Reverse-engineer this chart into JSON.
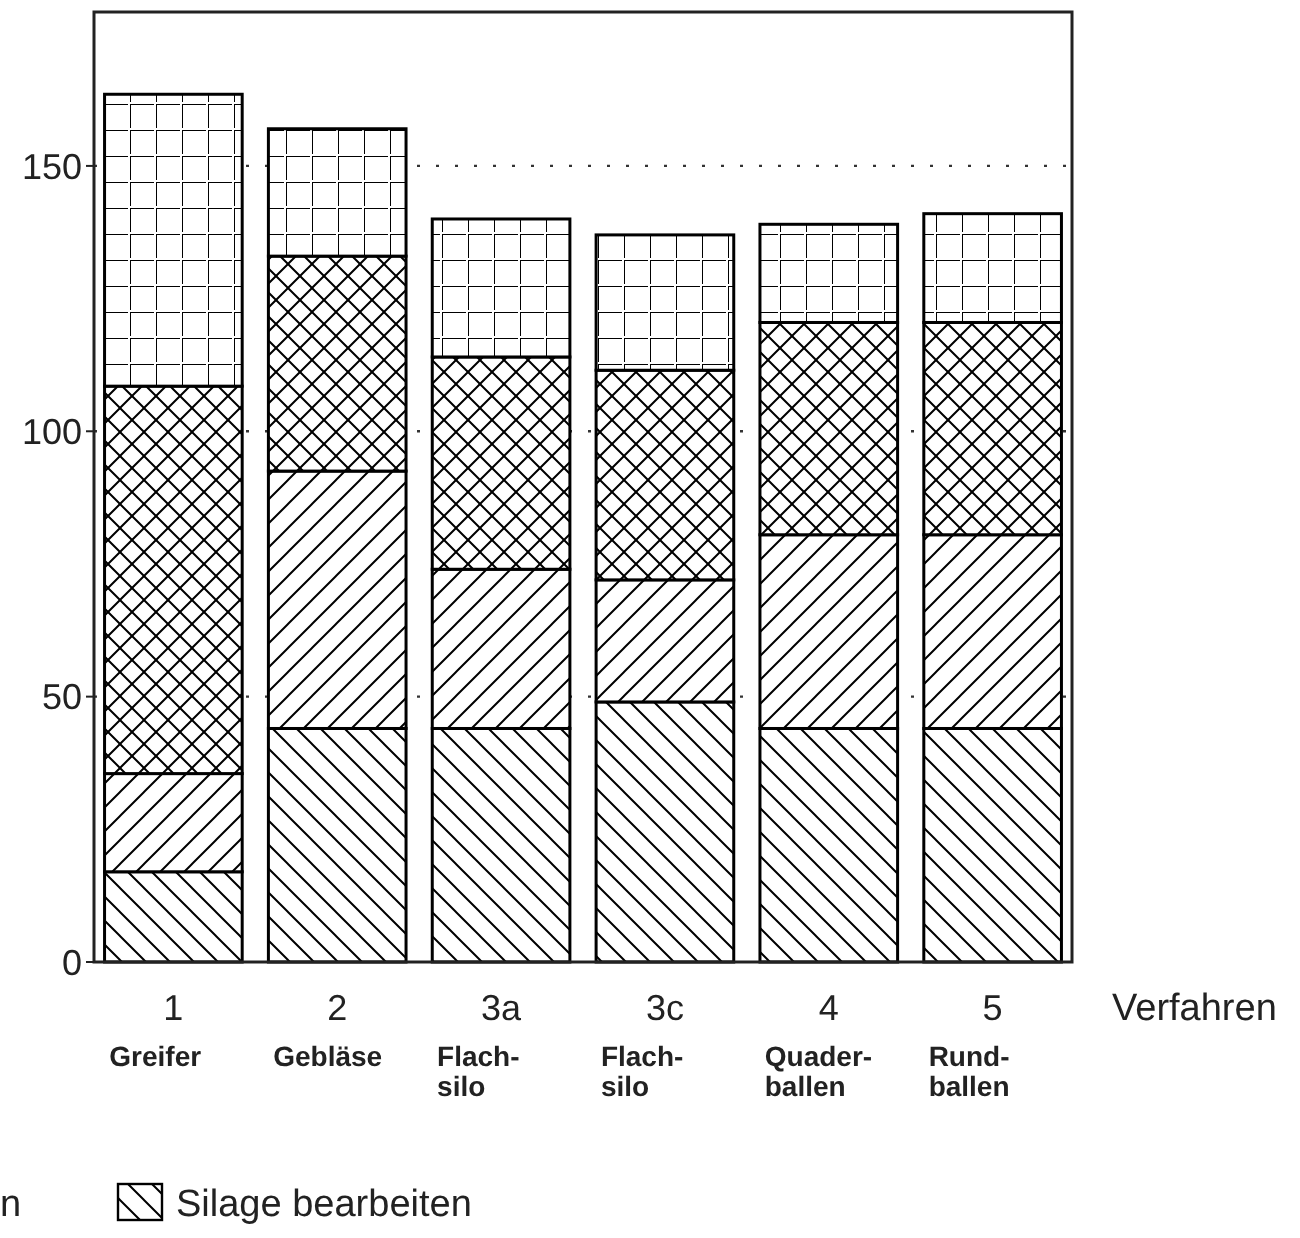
{
  "chart_data": {
    "type": "bar",
    "stacked": true,
    "xlabel": "Verfahren",
    "categories": [
      "1\nGreifer",
      "2\nGebläse",
      "3a\nFlach-\nsilo",
      "3c\nFlach-\nsilo",
      "4\nQuader-\nballen",
      "5\nRund-\nballen"
    ],
    "series": [
      {
        "name": "Silage bearbeiten",
        "color": "#000000",
        "values": [
          17,
          44,
          44,
          49,
          44,
          44
        ]
      },
      {
        "color": "#000000",
        "values": [
          18.5,
          48.5,
          30,
          23,
          36.5,
          36.5
        ]
      },
      {
        "color": "#000000",
        "values": [
          73,
          40.5,
          40,
          39.5,
          40,
          40
        ]
      },
      {
        "color": "#000000",
        "values": [
          55,
          24,
          26,
          25.5,
          18.5,
          20.5
        ]
      }
    ],
    "ylim": [
      0,
      179
    ],
    "yticks": [
      0,
      50,
      100,
      150
    ],
    "grid": "y",
    "legend": "bottom",
    "annotations": [
      "n"
    ]
  }
}
